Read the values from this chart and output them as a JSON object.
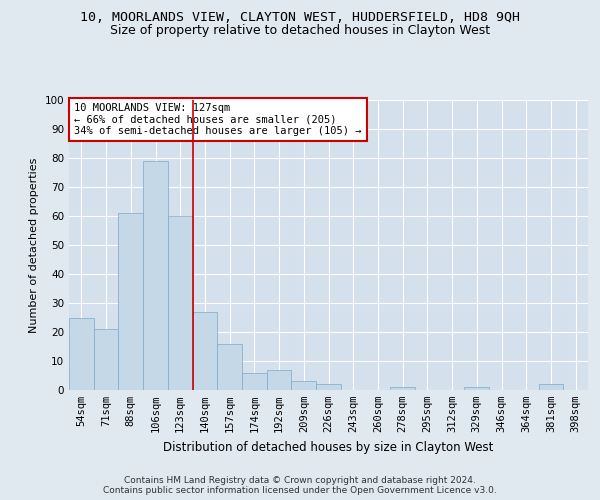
{
  "title1": "10, MOORLANDS VIEW, CLAYTON WEST, HUDDERSFIELD, HD8 9QH",
  "title2": "Size of property relative to detached houses in Clayton West",
  "xlabel": "Distribution of detached houses by size in Clayton West",
  "ylabel": "Number of detached properties",
  "categories": [
    "54sqm",
    "71sqm",
    "88sqm",
    "106sqm",
    "123sqm",
    "140sqm",
    "157sqm",
    "174sqm",
    "192sqm",
    "209sqm",
    "226sqm",
    "243sqm",
    "260sqm",
    "278sqm",
    "295sqm",
    "312sqm",
    "329sqm",
    "346sqm",
    "364sqm",
    "381sqm",
    "398sqm"
  ],
  "values": [
    25,
    21,
    61,
    79,
    60,
    27,
    16,
    6,
    7,
    3,
    2,
    0,
    0,
    1,
    0,
    0,
    1,
    0,
    0,
    2,
    0
  ],
  "bar_color": "#c5d8e8",
  "bar_edge_color": "#7eaac8",
  "bg_color": "#e0e8f0",
  "plot_bg_color": "#d4e0ec",
  "grid_color": "#ffffff",
  "vline_x": 4.5,
  "vline_color": "#cc0000",
  "annotation_text": "10 MOORLANDS VIEW: 127sqm\n← 66% of detached houses are smaller (205)\n34% of semi-detached houses are larger (105) →",
  "annotation_box_color": "#ffffff",
  "annotation_box_edge_color": "#cc0000",
  "footer_text": "Contains HM Land Registry data © Crown copyright and database right 2024.\nContains public sector information licensed under the Open Government Licence v3.0.",
  "ylim": [
    0,
    100
  ],
  "title1_fontsize": 9.5,
  "title2_fontsize": 9,
  "xlabel_fontsize": 8.5,
  "ylabel_fontsize": 8,
  "tick_fontsize": 7.5,
  "annotation_fontsize": 7.5,
  "footer_fontsize": 6.5
}
